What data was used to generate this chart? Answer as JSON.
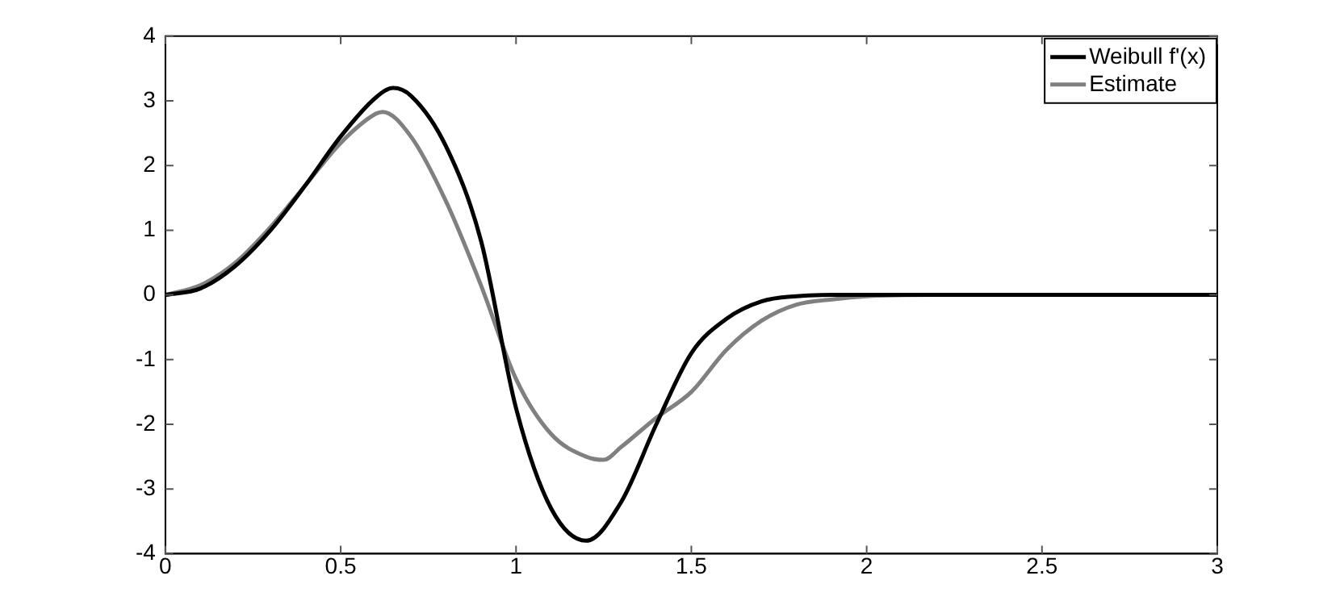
{
  "chart_data": {
    "type": "line",
    "xlim": [
      0,
      3
    ],
    "ylim": [
      -4,
      4
    ],
    "xticks": [
      0,
      0.5,
      1,
      1.5,
      2,
      2.5,
      3
    ],
    "yticks": [
      -4,
      -3,
      -2,
      -1,
      0,
      1,
      2,
      3,
      4
    ],
    "grid": false,
    "legend": "top right",
    "marker": "none",
    "line_style": "solid",
    "series": [
      {
        "name": "Weibull f'(x)",
        "color": "#000000",
        "x": [
          0,
          0.1,
          0.2,
          0.3,
          0.4,
          0.5,
          0.6,
          0.65,
          0.7,
          0.8,
          0.9,
          1.0,
          1.1,
          1.2,
          1.3,
          1.4,
          1.5,
          1.6,
          1.7,
          1.8,
          1.9,
          2.0,
          2.5,
          3
        ],
        "values": [
          0,
          0.1,
          0.45,
          1.0,
          1.7,
          2.45,
          3.05,
          3.2,
          3.08,
          2.3,
          0.84,
          -1.75,
          -3.3,
          -3.8,
          -3.2,
          -2.0,
          -0.9,
          -0.37,
          -0.1,
          -0.02,
          0,
          0,
          0,
          0
        ]
      },
      {
        "name": "Estimate",
        "color": "#808080",
        "x": [
          0,
          0.1,
          0.2,
          0.3,
          0.4,
          0.5,
          0.6,
          0.62,
          0.7,
          0.8,
          0.9,
          1.0,
          1.1,
          1.2,
          1.25,
          1.3,
          1.4,
          1.5,
          1.6,
          1.7,
          1.8,
          1.9,
          2.0,
          2.2,
          2.5,
          3
        ],
        "values": [
          0,
          0.15,
          0.5,
          1.05,
          1.7,
          2.35,
          2.8,
          2.83,
          2.45,
          1.45,
          0.15,
          -1.3,
          -2.15,
          -2.5,
          -2.55,
          -2.35,
          -1.9,
          -1.5,
          -0.85,
          -0.4,
          -0.15,
          -0.07,
          -0.02,
          0,
          0,
          0
        ]
      }
    ]
  }
}
